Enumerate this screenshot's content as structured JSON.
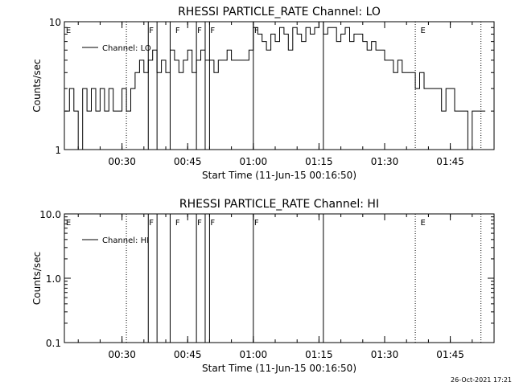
{
  "page": {
    "footer_timestamp": "26-Oct-2021 17:21"
  },
  "chart_data": [
    {
      "type": "line",
      "title": "RHESSI PARTICLE_RATE Channel: LO",
      "xlabel": "Start Time (11-Jun-15 00:16:50)",
      "ylabel": "Counts/sec",
      "y_scale": "log",
      "ylim": [
        1,
        10
      ],
      "y_ticks": [
        {
          "value": 1,
          "label": "1"
        },
        {
          "value": 10,
          "label": "10"
        }
      ],
      "xlim": [
        "00:16:50",
        "01:55:00"
      ],
      "x_ticks": [
        "00:30",
        "00:45",
        "01:00",
        "01:15",
        "01:30",
        "01:45"
      ],
      "legend": {
        "position": "top-left",
        "entries": [
          "Channel: LO"
        ]
      },
      "series": [
        {
          "name": "Channel: LO",
          "x": [
            "00:17",
            "00:18",
            "00:19",
            "00:20",
            "00:21",
            "00:22",
            "00:23",
            "00:24",
            "00:25",
            "00:26",
            "00:27",
            "00:28",
            "00:29",
            "00:30",
            "00:31",
            "00:32",
            "00:33",
            "00:34",
            "00:35",
            "00:36",
            "00:37",
            "00:38",
            "00:39",
            "00:40",
            "00:41",
            "00:42",
            "00:43",
            "00:44",
            "00:45",
            "00:46",
            "00:47",
            "00:48",
            "00:49",
            "00:50",
            "00:51",
            "00:52",
            "00:53",
            "00:54",
            "00:55",
            "00:56",
            "00:57",
            "00:58",
            "00:59",
            "01:00",
            "01:01",
            "01:02",
            "01:03",
            "01:04",
            "01:05",
            "01:06",
            "01:07",
            "01:08",
            "01:09",
            "01:10",
            "01:11",
            "01:12",
            "01:13",
            "01:14",
            "01:15",
            "01:16",
            "01:17",
            "01:18",
            "01:19",
            "01:20",
            "01:21",
            "01:22",
            "01:23",
            "01:24",
            "01:25",
            "01:26",
            "01:27",
            "01:28",
            "01:29",
            "01:30",
            "01:31",
            "01:32",
            "01:33",
            "01:34",
            "01:35",
            "01:36",
            "01:37",
            "01:38",
            "01:39",
            "01:40",
            "01:41",
            "01:42",
            "01:43",
            "01:44",
            "01:45",
            "01:46",
            "01:47",
            "01:48",
            "01:49",
            "01:50",
            "01:51",
            "01:52",
            "01:53"
          ],
          "values": [
            2,
            3,
            2,
            1,
            3,
            2,
            3,
            2,
            3,
            2,
            3,
            2,
            2,
            3,
            2,
            3,
            4,
            5,
            4,
            5,
            6,
            4,
            5,
            4,
            6,
            5,
            4,
            5,
            6,
            4,
            5,
            6,
            5,
            5,
            4,
            5,
            5,
            6,
            5,
            5,
            5,
            5,
            6,
            9,
            8,
            7,
            6,
            8,
            7,
            9,
            8,
            6,
            9,
            8,
            7,
            9,
            8,
            9,
            10,
            8,
            9,
            9,
            7,
            8,
            9,
            7,
            8,
            8,
            7,
            6,
            7,
            6,
            6,
            5,
            5,
            4,
            5,
            4,
            4,
            4,
            3,
            4,
            3,
            3,
            3,
            3,
            2,
            3,
            3,
            2,
            2,
            2,
            1,
            2,
            2,
            2,
            2
          ]
        }
      ],
      "annotations": [
        {
          "type": "dotted-line",
          "time": "00:31"
        },
        {
          "type": "dotted-line",
          "time": "01:37"
        },
        {
          "type": "dotted-line",
          "time": "01:52"
        },
        {
          "type": "solid-line",
          "time": "00:36"
        },
        {
          "type": "solid-line",
          "time": "00:38"
        },
        {
          "type": "solid-line",
          "time": "00:41"
        },
        {
          "type": "solid-line",
          "time": "00:47"
        },
        {
          "type": "solid-line",
          "time": "00:49"
        },
        {
          "type": "solid-line",
          "time": "00:50"
        },
        {
          "type": "solid-line",
          "time": "01:00"
        },
        {
          "type": "solid-line",
          "time": "01:16"
        },
        {
          "type": "label",
          "time": "00:17",
          "text": "E"
        },
        {
          "type": "label",
          "time": "00:36",
          "text": "F"
        },
        {
          "type": "label",
          "time": "00:42",
          "text": "F"
        },
        {
          "type": "label",
          "time": "00:47",
          "text": "F"
        },
        {
          "type": "label",
          "time": "00:50",
          "text": "F"
        },
        {
          "type": "label",
          "time": "01:00",
          "text": "F"
        },
        {
          "type": "label",
          "time": "01:38",
          "text": "E"
        }
      ]
    },
    {
      "type": "line",
      "title": "RHESSI PARTICLE_RATE Channel: HI",
      "xlabel": "Start Time (11-Jun-15 00:16:50)",
      "ylabel": "Counts/sec",
      "y_scale": "log",
      "ylim": [
        0.1,
        10
      ],
      "y_ticks": [
        {
          "value": 0.1,
          "label": "0.1"
        },
        {
          "value": 1,
          "label": "1.0"
        },
        {
          "value": 10,
          "label": "10.0"
        }
      ],
      "xlim": [
        "00:16:50",
        "01:55:00"
      ],
      "x_ticks": [
        "00:30",
        "00:45",
        "01:00",
        "01:15",
        "01:30",
        "01:45"
      ],
      "legend": {
        "position": "top-left",
        "entries": [
          "Channel: HI"
        ]
      },
      "series": [
        {
          "name": "Channel: HI",
          "x": [],
          "values": []
        }
      ],
      "annotations": [
        {
          "type": "dotted-line",
          "time": "00:31"
        },
        {
          "type": "dotted-line",
          "time": "01:37"
        },
        {
          "type": "dotted-line",
          "time": "01:52"
        },
        {
          "type": "solid-line",
          "time": "00:36"
        },
        {
          "type": "solid-line",
          "time": "00:38"
        },
        {
          "type": "solid-line",
          "time": "00:41"
        },
        {
          "type": "solid-line",
          "time": "00:47"
        },
        {
          "type": "solid-line",
          "time": "00:49"
        },
        {
          "type": "solid-line",
          "time": "00:50"
        },
        {
          "type": "solid-line",
          "time": "01:00"
        },
        {
          "type": "solid-line",
          "time": "01:16"
        },
        {
          "type": "label",
          "time": "00:17",
          "text": "E"
        },
        {
          "type": "label",
          "time": "00:36",
          "text": "F"
        },
        {
          "type": "label",
          "time": "00:42",
          "text": "F"
        },
        {
          "type": "label",
          "time": "00:47",
          "text": "F"
        },
        {
          "type": "label",
          "time": "00:50",
          "text": "F"
        },
        {
          "type": "label",
          "time": "01:00",
          "text": "F"
        },
        {
          "type": "label",
          "time": "01:38",
          "text": "E"
        }
      ]
    }
  ]
}
